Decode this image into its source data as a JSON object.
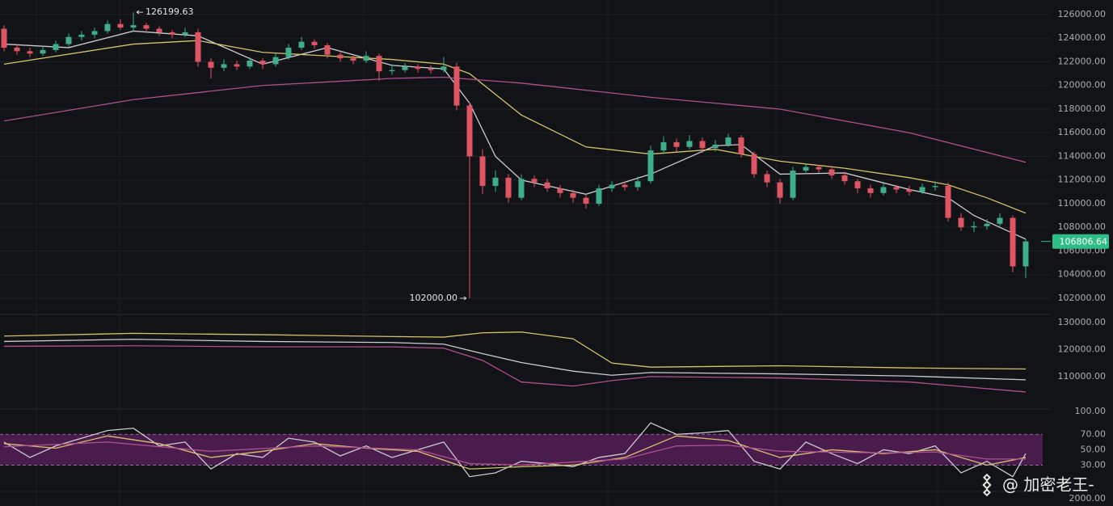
{
  "chart_data": [
    {
      "type": "candlestick",
      "ohlc": [
        [
          124800,
          125100,
          122900,
          123200
        ],
        [
          123200,
          123500,
          122600,
          122900
        ],
        [
          122900,
          123200,
          122400,
          122700
        ],
        [
          122700,
          123300,
          122500,
          123000
        ],
        [
          123000,
          123800,
          122800,
          123500
        ],
        [
          123500,
          124400,
          123300,
          124100
        ],
        [
          124100,
          124600,
          123800,
          124300
        ],
        [
          124300,
          124900,
          124000,
          124600
        ],
        [
          124600,
          125500,
          124400,
          125200
        ],
        [
          125200,
          125600,
          124700,
          124900
        ],
        [
          124900,
          126199.63,
          124600,
          125100
        ],
        [
          125100,
          125300,
          124500,
          124800
        ],
        [
          124800,
          125000,
          124200,
          124500
        ],
        [
          124500,
          124700,
          124000,
          124300
        ],
        [
          124300,
          124900,
          124100,
          124500
        ],
        [
          124500,
          124800,
          121600,
          122000
        ],
        [
          122000,
          122300,
          120600,
          121500
        ],
        [
          121500,
          122200,
          121200,
          121800
        ],
        [
          121800,
          122100,
          121300,
          121600
        ],
        [
          121600,
          122400,
          121400,
          122100
        ],
        [
          122100,
          122300,
          121400,
          121800
        ],
        [
          121800,
          122700,
          121600,
          122400
        ],
        [
          122400,
          123500,
          122200,
          123200
        ],
        [
          123200,
          124100,
          123000,
          123700
        ],
        [
          123700,
          123900,
          123100,
          123400
        ],
        [
          123400,
          123600,
          122300,
          122600
        ],
        [
          122600,
          122800,
          122000,
          122300
        ],
        [
          122300,
          122600,
          121800,
          122100
        ],
        [
          122100,
          122900,
          121900,
          122500
        ],
        [
          122500,
          122700,
          120400,
          121200
        ],
        [
          121200,
          121800,
          120900,
          121300
        ],
        [
          121300,
          121900,
          121100,
          121600
        ],
        [
          121600,
          121800,
          121100,
          121400
        ],
        [
          121400,
          121700,
          121000,
          121300
        ],
        [
          121300,
          122400,
          121100,
          121600
        ],
        [
          121600,
          121900,
          117900,
          118300
        ],
        [
          118300,
          118600,
          102000,
          114000
        ],
        [
          114000,
          114600,
          110800,
          111500
        ],
        [
          111500,
          112800,
          111000,
          112200
        ],
        [
          112200,
          112500,
          110100,
          110500
        ],
        [
          110500,
          112500,
          110300,
          112100
        ],
        [
          112100,
          112400,
          111400,
          111800
        ],
        [
          111800,
          112100,
          111000,
          111300
        ],
        [
          111300,
          111600,
          110500,
          110900
        ],
        [
          110900,
          111200,
          110100,
          110500
        ],
        [
          110500,
          110800,
          109600,
          110000
        ],
        [
          110000,
          111600,
          109800,
          111300
        ],
        [
          111300,
          111900,
          111000,
          111600
        ],
        [
          111600,
          111900,
          111100,
          111400
        ],
        [
          111400,
          112300,
          111100,
          111900
        ],
        [
          111900,
          114900,
          111700,
          114500
        ],
        [
          114500,
          115700,
          114200,
          115200
        ],
        [
          115200,
          115500,
          114400,
          114800
        ],
        [
          114800,
          115800,
          114600,
          115300
        ],
        [
          115300,
          115600,
          114300,
          114700
        ],
        [
          114700,
          115400,
          114400,
          115000
        ],
        [
          115000,
          115900,
          114800,
          115600
        ],
        [
          115600,
          115800,
          113900,
          114200
        ],
        [
          114200,
          114400,
          112200,
          112500
        ],
        [
          112500,
          112800,
          111400,
          111800
        ],
        [
          111800,
          112100,
          110000,
          110500
        ],
        [
          110500,
          113100,
          110300,
          112800
        ],
        [
          112800,
          113400,
          112500,
          113100
        ],
        [
          113100,
          113300,
          112600,
          112900
        ],
        [
          112900,
          113200,
          112100,
          112400
        ],
        [
          112400,
          112700,
          111600,
          111900
        ],
        [
          111900,
          112100,
          110900,
          111300
        ],
        [
          111300,
          111600,
          110500,
          110900
        ],
        [
          110900,
          111700,
          110700,
          111400
        ],
        [
          111400,
          111600,
          110900,
          111200
        ],
        [
          111200,
          111500,
          110700,
          111000
        ],
        [
          111000,
          111700,
          110800,
          111400
        ],
        [
          111400,
          111900,
          111100,
          111500
        ],
        [
          111500,
          111800,
          108500,
          108800
        ],
        [
          108800,
          109200,
          107700,
          108000
        ],
        [
          108000,
          108500,
          107600,
          108100
        ],
        [
          108100,
          108700,
          107800,
          108300
        ],
        [
          108300,
          109200,
          108100,
          108800
        ],
        [
          108800,
          109000,
          104200,
          104700
        ],
        [
          104700,
          107000,
          103700,
          106806.64
        ]
      ],
      "up_color": "#3fae8c",
      "down_color": "#e05563",
      "ylim": [
        100700,
        127230
      ],
      "yticks": [
        {
          "value": 126000,
          "label": "126000.00"
        },
        {
          "value": 124000,
          "label": "124000.00"
        },
        {
          "value": 122000,
          "label": "122000.00"
        },
        {
          "value": 120000,
          "label": "120000.00"
        },
        {
          "value": 118000,
          "label": "118000.00"
        },
        {
          "value": 116000,
          "label": "116000.00"
        },
        {
          "value": 114000,
          "label": "114000.00"
        },
        {
          "value": 112000,
          "label": "112000.00"
        },
        {
          "value": 110000,
          "label": "110000.00"
        },
        {
          "value": 108000,
          "label": "108000.00"
        },
        {
          "value": 106000,
          "label": "106000.00"
        },
        {
          "value": 104000,
          "label": "104000.00"
        },
        {
          "value": 102000,
          "label": "102000.00"
        }
      ],
      "grid": true,
      "max_label": "126199.63",
      "min_label": "102000.00",
      "last_label": "106806.64",
      "last_color": "#2ebd85",
      "series": [
        {
          "color": "#c9ccd1",
          "x": [
            0,
            5,
            10,
            15,
            20,
            25,
            30,
            34,
            36,
            38,
            40,
            45,
            50,
            55,
            57,
            60,
            65,
            70,
            73,
            75,
            78,
            79
          ],
          "values": [
            123500,
            123200,
            124600,
            124200,
            121800,
            123200,
            121700,
            121400,
            118500,
            114000,
            112000,
            110800,
            112500,
            114900,
            115000,
            112500,
            112600,
            111200,
            110500,
            109000,
            107500,
            107000
          ]
        },
        {
          "color": "#d6c26b",
          "x": [
            0,
            10,
            15,
            20,
            30,
            34,
            36,
            40,
            45,
            50,
            55,
            60,
            65,
            70,
            73,
            76,
            79
          ],
          "values": [
            121800,
            123500,
            123800,
            122800,
            122200,
            121800,
            121000,
            117500,
            114800,
            114200,
            114600,
            113600,
            113000,
            112200,
            111600,
            110500,
            109200
          ]
        },
        {
          "color": "#b0508f",
          "x": [
            0,
            10,
            20,
            30,
            34,
            40,
            50,
            60,
            70,
            79
          ],
          "values": [
            117000,
            118800,
            120000,
            120600,
            120700,
            120200,
            119000,
            118000,
            116000,
            113500
          ]
        }
      ]
    },
    {
      "type": "line",
      "ylim": [
        98000,
        133000
      ],
      "yticks": [
        {
          "value": 130000,
          "label": "130000.00"
        },
        {
          "value": 120000,
          "label": "120000.00"
        },
        {
          "value": 110000,
          "label": "110000.00"
        }
      ],
      "series": [
        {
          "color": "#d6c26b",
          "x": [
            0,
            10,
            20,
            30,
            34,
            37,
            40,
            44,
            47,
            50,
            60,
            70,
            79
          ],
          "values": [
            125000,
            126000,
            125500,
            124800,
            124600,
            126200,
            126500,
            124000,
            115000,
            113500,
            114000,
            113200,
            112800
          ]
        },
        {
          "color": "#c9ccd1",
          "x": [
            0,
            10,
            20,
            30,
            34,
            37,
            40,
            44,
            47,
            50,
            60,
            70,
            79
          ],
          "values": [
            123000,
            123800,
            123000,
            122600,
            122000,
            118500,
            115200,
            112000,
            110500,
            111500,
            111000,
            110200,
            108800
          ]
        },
        {
          "color": "#b0508f",
          "x": [
            0,
            10,
            20,
            30,
            34,
            37,
            40,
            44,
            47,
            50,
            60,
            70,
            79
          ],
          "values": [
            121200,
            121400,
            121000,
            121000,
            120500,
            116000,
            108000,
            106500,
            108500,
            110000,
            109500,
            108000,
            104300
          ]
        }
      ]
    },
    {
      "type": "line",
      "ylim": [
        0,
        103
      ],
      "yticks": [
        {
          "value": 100,
          "label": "100.00"
        },
        {
          "value": 70,
          "label": "70.00"
        },
        {
          "value": 50,
          "label": "50.00"
        },
        {
          "value": 30,
          "label": "30.00"
        }
      ],
      "band": [
        30,
        70
      ],
      "band_color": "#4a1c4e",
      "series": [
        {
          "color": "#c9ccd1",
          "x": [
            0,
            2,
            4,
            6,
            8,
            10,
            12,
            14,
            16,
            18,
            20,
            22,
            24,
            26,
            28,
            30,
            32,
            34,
            36,
            38,
            40,
            42,
            44,
            46,
            48,
            50,
            52,
            54,
            56,
            58,
            60,
            62,
            64,
            66,
            68,
            70,
            72,
            74,
            76,
            78,
            79
          ],
          "values": [
            60,
            40,
            55,
            65,
            75,
            78,
            55,
            60,
            25,
            45,
            40,
            65,
            60,
            42,
            55,
            40,
            50,
            60,
            15,
            20,
            35,
            32,
            28,
            40,
            45,
            85,
            70,
            72,
            75,
            35,
            25,
            60,
            45,
            32,
            50,
            45,
            55,
            20,
            35,
            15,
            45
          ]
        },
        {
          "color": "#d6c26b",
          "x": [
            0,
            4,
            8,
            12,
            16,
            20,
            24,
            28,
            32,
            36,
            40,
            44,
            48,
            52,
            56,
            60,
            64,
            68,
            72,
            76,
            79
          ],
          "values": [
            58,
            52,
            68,
            58,
            40,
            48,
            58,
            52,
            48,
            25,
            28,
            30,
            40,
            68,
            62,
            40,
            50,
            45,
            50,
            30,
            40
          ]
        },
        {
          "color": "#b0508f",
          "x": [
            0,
            8,
            16,
            24,
            32,
            36,
            40,
            48,
            52,
            56,
            60,
            68,
            72,
            76,
            79
          ],
          "values": [
            54,
            60,
            48,
            55,
            50,
            32,
            30,
            38,
            55,
            56,
            48,
            46,
            47,
            38,
            38
          ]
        }
      ]
    },
    {
      "type": "bar",
      "yticks": [
        {
          "value": 2000,
          "label": "2000.00"
        }
      ]
    }
  ],
  "watermark": "@ 加密老王-"
}
